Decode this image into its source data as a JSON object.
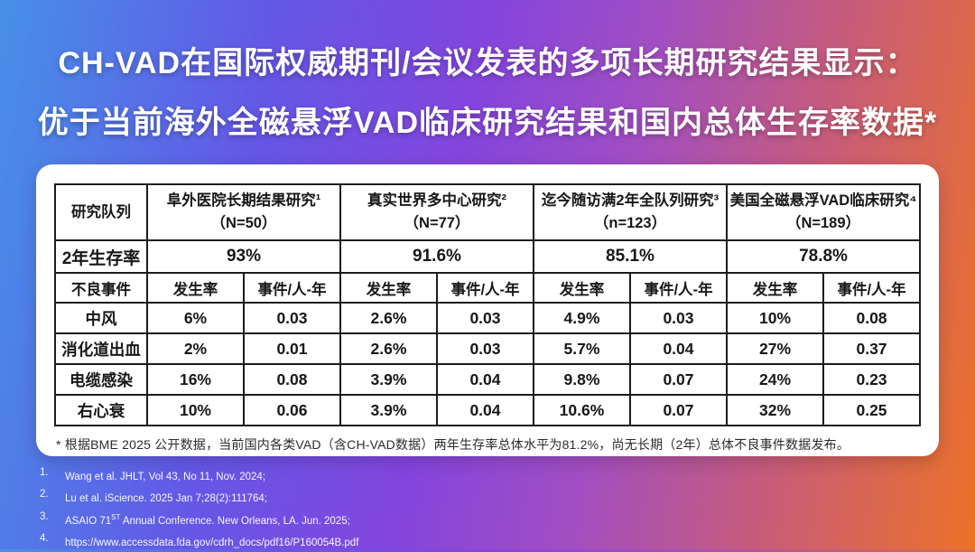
{
  "title": {
    "line1": "CH-VAD在国际权威期刊/会议发表的多项长期研究结果显示：",
    "line2": "优于当前海外全磁悬浮VAD临床研究结果和国内总体生存率数据*"
  },
  "table": {
    "cohort_header": "研究队列",
    "survival_label": "2年生存率",
    "adverse_label": "不良事件",
    "rate_label": "发生率",
    "events_label": "事件/人-年",
    "studies": [
      {
        "name": "阜外医院长期结果研究¹",
        "n": "（N=50）",
        "survival": "93%"
      },
      {
        "name": "真实世界多中心研究²",
        "n": "（N=77）",
        "survival": "91.6%"
      },
      {
        "name": "迄今随访满2年全队列研究³",
        "n": "（n=123）",
        "survival": "85.1%"
      },
      {
        "name": "美国全磁悬浮VAD临床研究⁴",
        "n": "（N=189）",
        "survival": "78.8%"
      }
    ],
    "adverse_rows": [
      {
        "label": "中风",
        "values": [
          "6%",
          "0.03",
          "2.6%",
          "0.03",
          "4.9%",
          "0.03",
          "10%",
          "0.08"
        ]
      },
      {
        "label": "消化道出血",
        "values": [
          "2%",
          "0.01",
          "2.6%",
          "0.03",
          "5.7%",
          "0.04",
          "27%",
          "0.37"
        ]
      },
      {
        "label": "电缆感染",
        "values": [
          "16%",
          "0.08",
          "3.9%",
          "0.04",
          "9.8%",
          "0.07",
          "24%",
          "0.23"
        ]
      },
      {
        "label": "右心衰",
        "values": [
          "10%",
          "0.06",
          "3.9%",
          "0.04",
          "10.6%",
          "0.07",
          "32%",
          "0.25"
        ]
      }
    ],
    "footnote": "* 根据BME 2025 公开数据，当前国内各类VAD（含CH-VAD数据）两年生存率总体水平为81.2%，尚无长期（2年）总体不良事件数据发布。"
  },
  "references": [
    {
      "num": "1.",
      "pre": "Wang et al. JHLT, Vol 43, No 11, Nov. 2024;"
    },
    {
      "num": "2.",
      "pre": "Lu et al. iScience. 2025 Jan 7;28(2):111764;"
    },
    {
      "num": "3.",
      "pre": "ASAIO 71",
      "sup": "ST",
      "post": " Annual Conference. New Orleans, LA. Jun. 2025;"
    },
    {
      "num": "4.",
      "pre": "https://www.accessdata.fda.gov/cdrh_docs/pdf16/P160054B.pdf"
    }
  ],
  "colors": {
    "gradient_left": "#4690e8",
    "gradient_mid": "#8445dd",
    "gradient_right": "#ec7227",
    "card_bg": "#ffffff",
    "table_border": "#1c1c1c",
    "title_text": "#ffffff"
  }
}
